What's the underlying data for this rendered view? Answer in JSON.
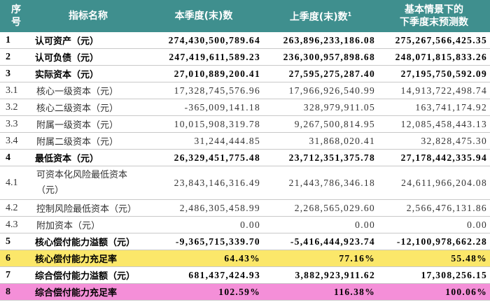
{
  "table": {
    "header": [
      {
        "lines": [
          "序",
          "号"
        ]
      },
      {
        "lines": [
          "指标名称"
        ]
      },
      {
        "lines": [
          "本季度(末)数"
        ]
      },
      {
        "lines": [
          "上季度(末)数"
        ],
        "sup": "1"
      },
      {
        "lines": [
          "基本情景下的",
          "下季度末预测数"
        ]
      }
    ],
    "header_color": "#3f8f8e",
    "rows": [
      {
        "no": "1",
        "name": "认可资产（元）",
        "values": [
          "274,430,500,789.64",
          "263,896,233,186.08",
          "275,267,566,425.35"
        ],
        "bold": true
      },
      {
        "no": "2",
        "name": "认可负债（元）",
        "values": [
          "247,419,611,589.23",
          "236,300,957,898.68",
          "248,071,815,833.26"
        ],
        "bold": true
      },
      {
        "no": "3",
        "name": "实际资本（元）",
        "values": [
          "27,010,889,200.41",
          "27,595,275,287.40",
          "27,195,750,592.09"
        ],
        "bold": true
      },
      {
        "no": "3.1",
        "name": "核心一级资本（元）",
        "values": [
          "17,328,745,576.96",
          "17,966,926,540.99",
          "14,913,722,498.74"
        ],
        "bold": false
      },
      {
        "no": "3.2",
        "name": "核心二级资本（元）",
        "values": [
          "-365,009,141.18",
          "328,979,911.05",
          "163,741,174.92"
        ],
        "bold": false
      },
      {
        "no": "3.3",
        "name": "附属一级资本（元）",
        "values": [
          "10,015,908,319.78",
          "9,267,500,814.95",
          "12,085,458,443.13"
        ],
        "bold": false
      },
      {
        "no": "3.4",
        "name": "附属二级资本（元）",
        "values": [
          "31,244,444.85",
          "31,868,020.41",
          "32,828,475.30"
        ],
        "bold": false
      },
      {
        "no": "4",
        "name": "最低资本（元）",
        "values": [
          "26,329,451,775.48",
          "23,712,351,375.78",
          "27,178,442,335.94"
        ],
        "bold": true
      },
      {
        "no": "4.1",
        "name": "可资本化风险最低资本（元）",
        "values": [
          "23,843,146,316.49",
          "21,443,786,346.18",
          "24,611,966,204.08"
        ],
        "bold": false,
        "tall": true
      },
      {
        "no": "4.2",
        "name": "控制风险最低资本（元）",
        "values": [
          "2,486,305,458.99",
          "2,268,565,029.60",
          "2,566,476,131.86"
        ],
        "bold": false
      },
      {
        "no": "4.3",
        "name": "附加资本（元）",
        "values": [
          "0.00",
          "0.00",
          "0.00"
        ],
        "bold": false
      },
      {
        "no": "5",
        "name": "核心偿付能力溢额（元）",
        "values": [
          "-9,365,715,339.70",
          "-5,416,444,923.74",
          "-12,100,978,662.28"
        ],
        "bold": true
      },
      {
        "no": "6",
        "name": "核心偿付能力充足率",
        "values": [
          "64.43%",
          "77.16%",
          "55.48%"
        ],
        "bold": true,
        "highlight": "#fbe76a"
      },
      {
        "no": "7",
        "name": "综合偿付能力溢额（元）",
        "values": [
          "681,437,424.93",
          "3,882,923,911.62",
          "17,308,256.15"
        ],
        "bold": true
      },
      {
        "no": "8",
        "name": "综合偿付能力充足率",
        "values": [
          "102.59%",
          "116.38%",
          "100.06%"
        ],
        "bold": true,
        "highlight": "#f48fd8"
      }
    ]
  }
}
